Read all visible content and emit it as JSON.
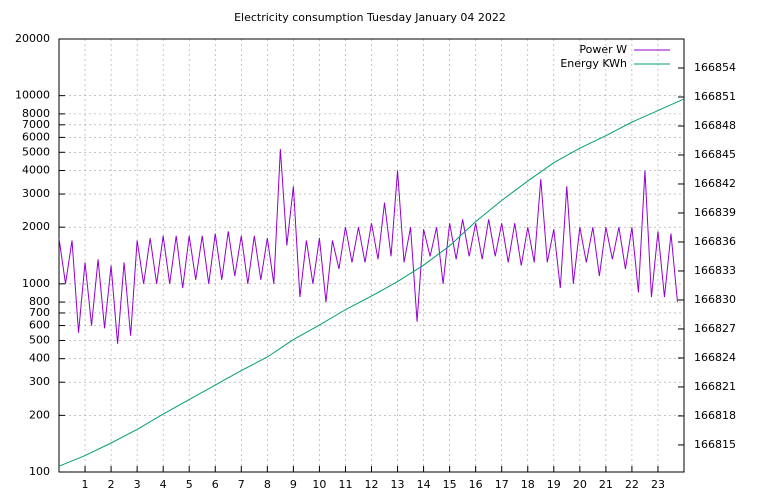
{
  "chart_data": {
    "type": "line",
    "title": "Electricity consumption Tuesday January 04 2022",
    "xlim": [
      0,
      24
    ],
    "xticks": [
      1,
      2,
      3,
      4,
      5,
      6,
      7,
      8,
      9,
      10,
      11,
      12,
      13,
      14,
      15,
      16,
      17,
      18,
      19,
      20,
      21,
      22,
      23
    ],
    "ylim": [
      100,
      20000
    ],
    "log_y": true,
    "yticks": [
      100,
      200,
      300,
      400,
      500,
      600,
      700,
      800,
      1000,
      2000,
      3000,
      4000,
      5000,
      6000,
      7000,
      8000,
      10000,
      20000
    ],
    "y2lim": [
      166812.2,
      166857
    ],
    "y2ticks": [
      166815,
      166818,
      166821,
      166824,
      166827,
      166830,
      166833,
      166836,
      166839,
      166842,
      166845,
      166848,
      166851,
      166854
    ],
    "grid": true,
    "legend": "top right",
    "series": [
      {
        "name": "Power W",
        "color": "#9400d3",
        "x": [
          0,
          0.25,
          0.5,
          0.75,
          1,
          1.25,
          1.5,
          1.75,
          2,
          2.25,
          2.5,
          2.75,
          3,
          3.25,
          3.5,
          3.75,
          4,
          4.25,
          4.5,
          4.75,
          5,
          5.25,
          5.5,
          5.75,
          6,
          6.25,
          6.5,
          6.75,
          7,
          7.25,
          7.5,
          7.75,
          8,
          8.25,
          8.5,
          8.75,
          9,
          9.25,
          9.5,
          9.75,
          10,
          10.25,
          10.5,
          10.75,
          11,
          11.25,
          11.5,
          11.75,
          12,
          12.25,
          12.5,
          12.75,
          13,
          13.25,
          13.5,
          13.75,
          14,
          14.25,
          14.5,
          14.75,
          15,
          15.25,
          15.5,
          15.75,
          16,
          16.25,
          16.5,
          16.75,
          17,
          17.25,
          17.5,
          17.75,
          18,
          18.25,
          18.5,
          18.75,
          19,
          19.25,
          19.5,
          19.75,
          20,
          20.25,
          20.5,
          20.75,
          21,
          21.25,
          21.5,
          21.75,
          22,
          22.25,
          22.5,
          22.75,
          23,
          23.25,
          23.5,
          23.75
        ],
        "values": [
          1750,
          1000,
          1700,
          550,
          1300,
          600,
          1350,
          580,
          1250,
          480,
          1300,
          530,
          1700,
          1000,
          1750,
          1000,
          1800,
          1000,
          1800,
          950,
          1800,
          1050,
          1800,
          1000,
          1850,
          1050,
          1900,
          1100,
          1800,
          1000,
          1800,
          1050,
          1750,
          1000,
          5200,
          1600,
          3300,
          850,
          1700,
          1000,
          1750,
          800,
          1700,
          1200,
          2000,
          1300,
          2000,
          1300,
          2100,
          1350,
          2700,
          1400,
          4000,
          1300,
          2000,
          630,
          1950,
          1400,
          2000,
          1000,
          2100,
          1350,
          2200,
          1400,
          2100,
          1350,
          2200,
          1400,
          2100,
          1300,
          2100,
          1250,
          2000,
          1300,
          3600,
          1300,
          1950,
          950,
          3300,
          1000,
          2000,
          1300,
          2000,
          1100,
          2000,
          1350,
          2000,
          1200,
          2000,
          900,
          4000,
          850,
          1900,
          850,
          1850,
          800
        ]
      },
      {
        "name": "Energy KWh",
        "color": "#009e73",
        "axis": "y2",
        "x": [
          0,
          1,
          2,
          3,
          4,
          5,
          6,
          7,
          8,
          9,
          10,
          11,
          12,
          13,
          14,
          15,
          16,
          17,
          18,
          19,
          20,
          21,
          22,
          23,
          24
        ],
        "values": [
          166812.8,
          166813.9,
          166815.2,
          166816.6,
          166818.2,
          166819.7,
          166821.2,
          166822.7,
          166824.1,
          166825.9,
          166827.4,
          166829.0,
          166830.4,
          166831.9,
          166833.6,
          166835.6,
          166838.1,
          166840.3,
          166842.3,
          166844.2,
          166845.7,
          166847.0,
          166848.4,
          166849.6,
          166850.8
        ]
      }
    ]
  }
}
